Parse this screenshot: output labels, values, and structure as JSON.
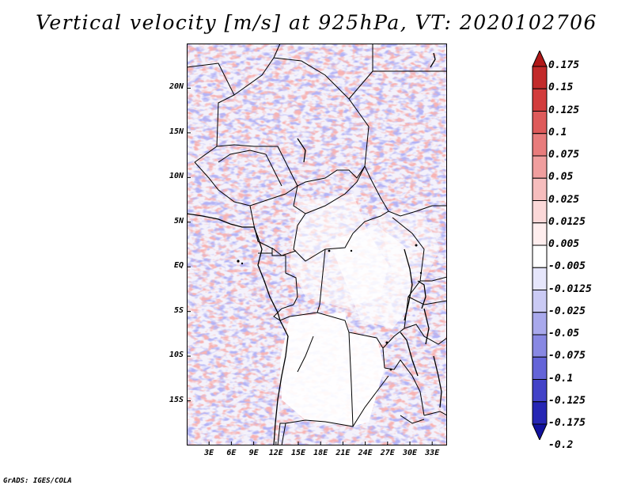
{
  "title": "Vertical velocity [m/s] at 925hPa, VT: 2020102706",
  "footer": "GrADS: IGES/COLA",
  "map": {
    "lon_range": [
      0,
      35
    ],
    "lat_range": [
      -20,
      25
    ],
    "lat_labels": [
      "20N",
      "15N",
      "10N",
      "5N",
      "EQ",
      "5S",
      "10S",
      "15S"
    ],
    "lat_values": [
      20,
      15,
      10,
      5,
      0,
      -5,
      -10,
      -15
    ],
    "lon_labels": [
      "3E",
      "6E",
      "9E",
      "12E",
      "15E",
      "18E",
      "21E",
      "24E",
      "27E",
      "30E",
      "33E"
    ],
    "lon_values": [
      3,
      6,
      9,
      12,
      15,
      18,
      21,
      24,
      27,
      30,
      33
    ]
  },
  "colorbar": {
    "labels": [
      "0.175",
      "0.15",
      "0.125",
      "0.1",
      "0.075",
      "0.05",
      "0.025",
      "0.0125",
      "0.005",
      "-0.005",
      "-0.0125",
      "-0.025",
      "-0.05",
      "-0.075",
      "-0.1",
      "-0.125",
      "-0.175",
      "-0.2"
    ],
    "colors": [
      "#b01818",
      "#c22a2a",
      "#d23c3c",
      "#de5a5a",
      "#e87c7c",
      "#f09e9e",
      "#f6bdbd",
      "#fbd8d8",
      "#ffeeee",
      "#ffffff",
      "#e6e6fb",
      "#cacaf4",
      "#a9a9ec",
      "#8888e3",
      "#6464d8",
      "#4242c8",
      "#2626b4",
      "#12129e"
    ]
  }
}
